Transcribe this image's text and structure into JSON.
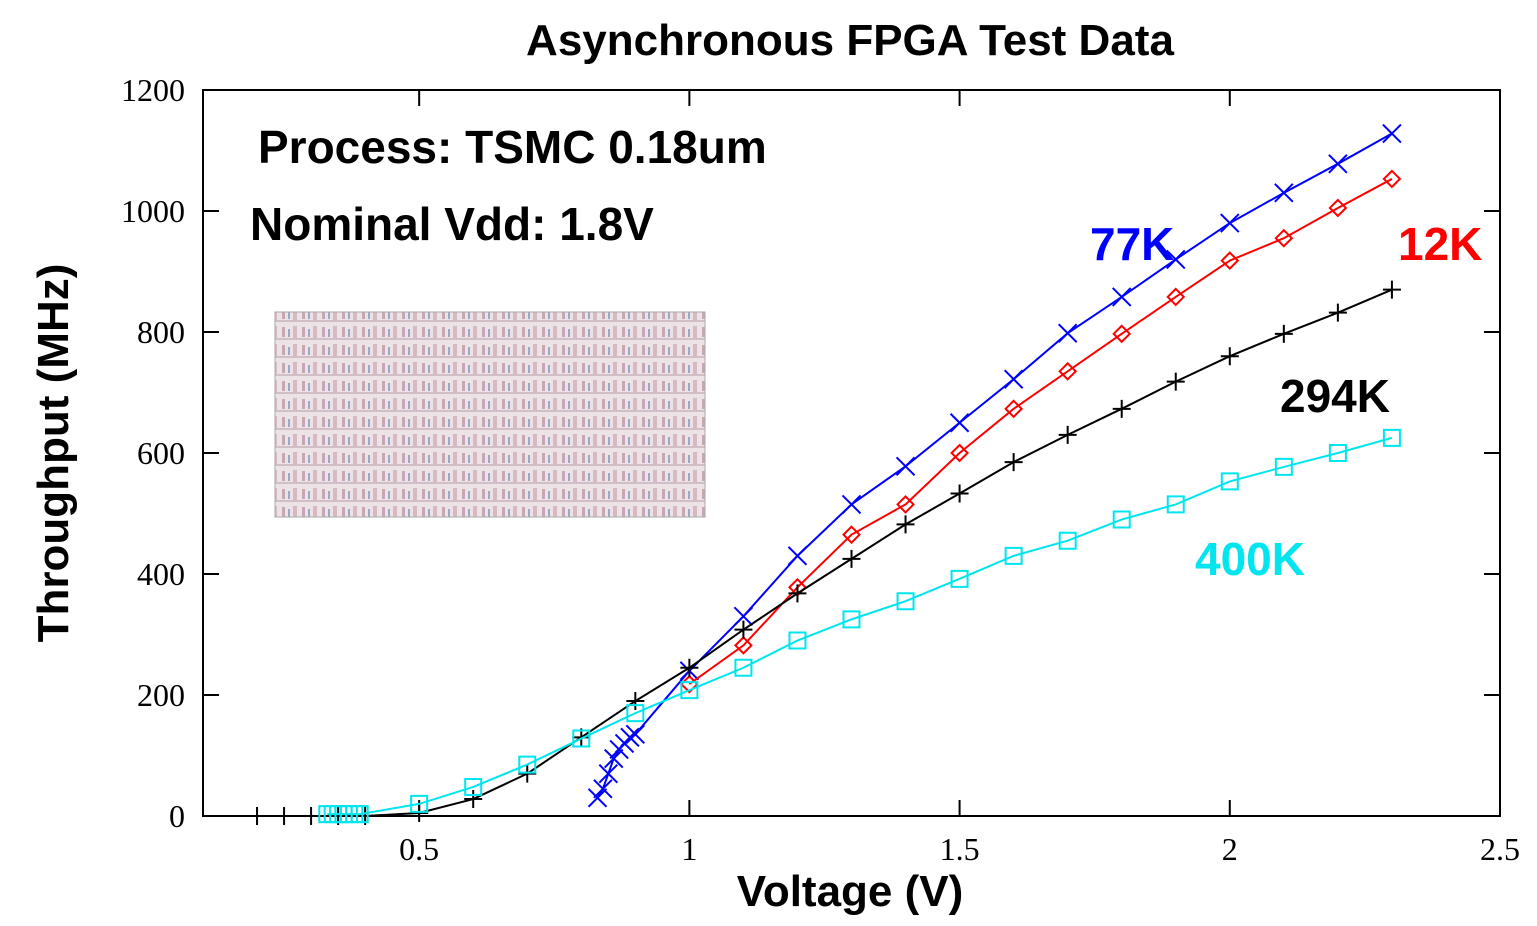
{
  "chart_data": {
    "type": "line",
    "title": "Asynchronous FPGA Test Data",
    "x_label": "Voltage (V)",
    "y_label": "Throughput (MHz)",
    "annotations": [
      "Process: TSMC 0.18um",
      "Nominal Vdd: 1.8V"
    ],
    "xlim": [
      0.1,
      2.5
    ],
    "xticks": [
      0.5,
      1,
      1.5,
      2,
      2.5
    ],
    "ylim": [
      0,
      1200
    ],
    "yticks": [
      0,
      200,
      400,
      600,
      800,
      1000,
      1200
    ],
    "grid": false,
    "series": [
      {
        "name": "77K",
        "color": "#0000ff",
        "marker": "x",
        "x": [
          0.83,
          0.84,
          0.85,
          0.86,
          0.87,
          0.88,
          0.89,
          0.9,
          1.0,
          1.1,
          1.2,
          1.3,
          1.4,
          1.5,
          1.6,
          1.7,
          1.8,
          1.9,
          2.0,
          2.1,
          2.2,
          2.3
        ],
        "values": [
          30,
          45,
          70,
          95,
          110,
          120,
          130,
          135,
          240,
          330,
          430,
          515,
          578,
          650,
          722,
          798,
          858,
          920,
          980,
          1030,
          1078,
          1128
        ]
      },
      {
        "name": "12K",
        "color": "#ff0000",
        "marker": "diamond",
        "x": [
          1.0,
          1.1,
          1.2,
          1.3,
          1.4,
          1.5,
          1.6,
          1.7,
          1.8,
          1.9,
          2.0,
          2.1,
          2.2,
          2.3
        ],
        "values": [
          218,
          282,
          378,
          465,
          515,
          600,
          673,
          735,
          797,
          858,
          918,
          955,
          1005,
          1053
        ]
      },
      {
        "name": "294K",
        "color": "#000000",
        "marker": "plus",
        "x": [
          0.2,
          0.25,
          0.3,
          0.35,
          0.4,
          0.5,
          0.6,
          0.7,
          0.8,
          0.9,
          1.0,
          1.1,
          1.2,
          1.3,
          1.4,
          1.5,
          1.6,
          1.7,
          1.8,
          1.9,
          2.0,
          2.1,
          2.2,
          2.3
        ],
        "values": [
          0,
          0,
          0,
          0,
          0,
          5,
          28,
          70,
          130,
          190,
          245,
          308,
          368,
          425,
          482,
          533,
          585,
          630,
          673,
          718,
          760,
          797,
          832,
          870
        ]
      },
      {
        "name": "400K",
        "color": "#00e5ee",
        "marker": "square",
        "x": [
          0.33,
          0.34,
          0.35,
          0.36,
          0.37,
          0.38,
          0.39,
          0.5,
          0.6,
          0.7,
          0.8,
          0.9,
          1.0,
          1.1,
          1.2,
          1.3,
          1.4,
          1.5,
          1.6,
          1.7,
          1.8,
          1.9,
          2.0,
          2.1,
          2.2,
          2.3
        ],
        "values": [
          3,
          3,
          3,
          3,
          3,
          3,
          3,
          20,
          48,
          85,
          128,
          170,
          208,
          245,
          290,
          325,
          355,
          392,
          430,
          455,
          490,
          515,
          553,
          577,
          600,
          625
        ]
      }
    ]
  }
}
